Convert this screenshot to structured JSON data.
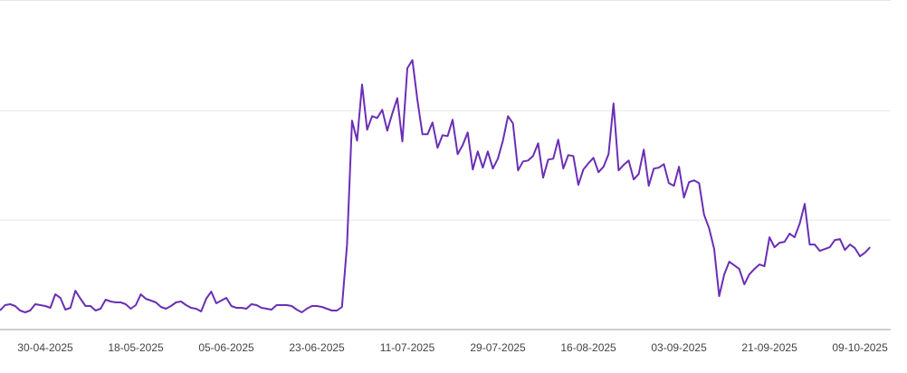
{
  "chart_data": {
    "type": "line",
    "categories": [
      null,
      null,
      null,
      null,
      null,
      null,
      null,
      null,
      null,
      "30-04-2025",
      null,
      null,
      null,
      null,
      null,
      null,
      null,
      null,
      null,
      null,
      null,
      null,
      null,
      null,
      null,
      null,
      null,
      "18-05-2025",
      null,
      null,
      null,
      null,
      null,
      null,
      null,
      null,
      null,
      null,
      null,
      null,
      null,
      null,
      null,
      null,
      null,
      "05-06-2025",
      null,
      null,
      null,
      null,
      null,
      null,
      null,
      null,
      null,
      null,
      null,
      null,
      null,
      null,
      null,
      null,
      null,
      "23-06-2025",
      null,
      null,
      null,
      null,
      null,
      null,
      null,
      null,
      null,
      null,
      null,
      null,
      null,
      null,
      null,
      null,
      null,
      "11-07-2025",
      null,
      null,
      null,
      null,
      null,
      null,
      null,
      null,
      null,
      null,
      null,
      null,
      null,
      null,
      null,
      null,
      null,
      "29-07-2025",
      null,
      null,
      null,
      null,
      null,
      null,
      null,
      null,
      null,
      null,
      null,
      null,
      null,
      null,
      null,
      null,
      null,
      "16-08-2025",
      null,
      null,
      null,
      null,
      null,
      null,
      null,
      null,
      null,
      null,
      null,
      null,
      null,
      null,
      null,
      null,
      null,
      "03-09-2025",
      null,
      null,
      null,
      null,
      null,
      null,
      null,
      null,
      null,
      null,
      null,
      null,
      null,
      null,
      null,
      null,
      null,
      "21-09-2025",
      null,
      null,
      null,
      null,
      null,
      null,
      null,
      null,
      null,
      null,
      null,
      null,
      null,
      null,
      null,
      null,
      null,
      "09-10-2025",
      null,
      null
    ],
    "values": [
      21,
      27,
      28,
      26,
      21,
      19,
      21,
      28,
      27,
      26,
      24,
      39,
      35,
      22,
      24,
      43,
      34,
      26,
      26,
      21,
      23,
      33,
      31,
      30,
      30,
      28,
      23,
      27,
      39,
      34,
      32,
      30,
      25,
      23,
      26,
      30,
      31,
      27,
      24,
      23,
      20,
      34,
      42,
      29,
      32,
      35,
      26,
      24,
      24,
      23,
      28,
      27,
      24,
      23,
      22,
      27,
      27,
      27,
      26,
      22,
      19,
      23,
      26,
      26,
      25,
      23,
      21,
      21,
      25,
      94,
      231,
      209,
      271,
      221,
      236,
      234,
      243,
      220,
      239,
      256,
      208,
      289,
      298,
      254,
      216,
      216,
      229,
      201,
      215,
      214,
      232,
      194,
      204,
      218,
      177,
      197,
      179,
      197,
      178,
      189,
      209,
      236,
      228,
      176,
      186,
      187,
      192,
      206,
      168,
      188,
      189,
      210,
      178,
      193,
      192,
      160,
      177,
      184,
      190,
      174,
      180,
      194,
      250,
      176,
      182,
      187,
      166,
      172,
      199,
      159,
      178,
      179,
      183,
      162,
      159,
      180,
      146,
      163,
      165,
      162,
      127,
      112,
      89,
      37,
      61,
      75,
      71,
      67,
      50,
      61,
      67,
      72,
      70,
      102,
      91,
      96,
      97,
      106,
      102,
      117,
      139,
      94,
      94,
      87,
      89,
      91,
      99,
      100,
      88,
      94,
      90,
      81,
      85,
      91
    ],
    "color": "#6a2fb5",
    "ylim": [
      0,
      364
    ],
    "yticks": [
      0,
      121,
      242,
      364
    ],
    "grid": true
  }
}
